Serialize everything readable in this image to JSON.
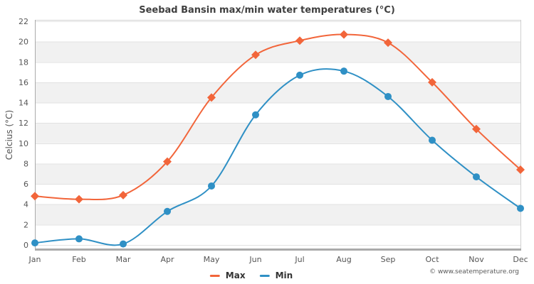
{
  "title": "Seebad Bansin max/min water temperatures (°C)",
  "y_axis_title": "Celcius (°C)",
  "footer": "© www.seatemperature.org",
  "legend": {
    "max_label": "Max",
    "min_label": "Min"
  },
  "colors": {
    "max_series": "#f2653a",
    "min_series": "#2f90c5",
    "band_fill": "#f1f1f1",
    "gridline": "#e2e2e2",
    "axis_border_light": "#d0d0d0",
    "axis_border_dark": "#aaaaaa",
    "tick_label": "#555555"
  },
  "chart_data": {
    "type": "line",
    "title": "Seebad Bansin max/min water temperatures (°C)",
    "xlabel": "",
    "ylabel": "Celcius (°C)",
    "categories": [
      "Jan",
      "Feb",
      "Mar",
      "Apr",
      "May",
      "Jun",
      "Jul",
      "Aug",
      "Sep",
      "Oct",
      "Nov",
      "Dec"
    ],
    "series": [
      {
        "name": "Max",
        "color": "#f2653a",
        "marker": "diamond",
        "values": [
          4.8,
          4.5,
          4.9,
          8.2,
          14.5,
          18.7,
          20.1,
          20.7,
          19.9,
          16.0,
          11.4,
          7.4
        ]
      },
      {
        "name": "Min",
        "color": "#2f90c5",
        "marker": "circle",
        "values": [
          0.2,
          0.6,
          0.1,
          3.3,
          5.8,
          12.8,
          16.7,
          17.1,
          14.6,
          10.3,
          6.7,
          3.6
        ]
      }
    ],
    "ylim": [
      0,
      22
    ],
    "ytick_step": 2,
    "grid": true,
    "banded_background": true,
    "line_style": "smooth",
    "legend_position": "bottom-center"
  }
}
